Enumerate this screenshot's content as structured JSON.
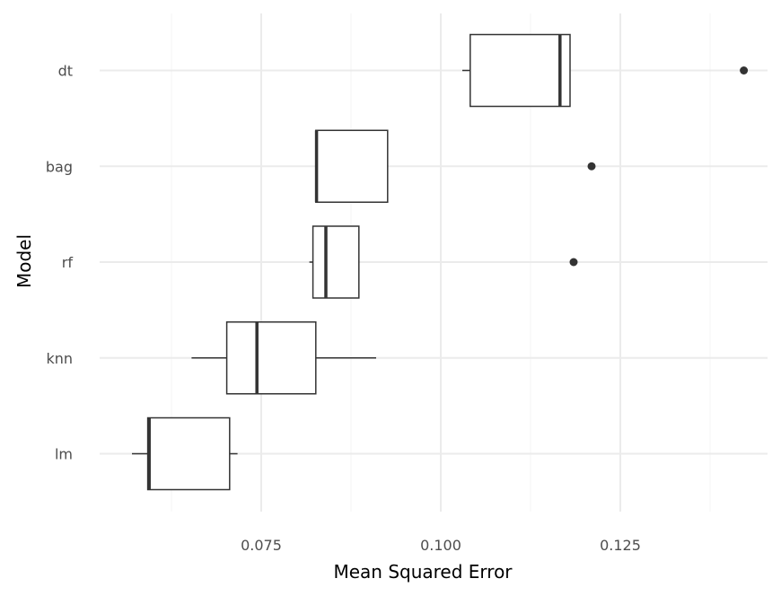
{
  "chart_data": {
    "type": "boxplot",
    "orientation": "horizontal",
    "xlabel": "Mean Squared Error",
    "ylabel": "Model",
    "xlim": [
      0.0525,
      0.1455
    ],
    "x_ticks": [
      0.075,
      0.1,
      0.125
    ],
    "x_tick_labels": [
      "0.075",
      "0.100",
      "0.125"
    ],
    "x_minor_ticks": [
      0.0625,
      0.0875,
      0.1125,
      0.1375
    ],
    "categories": [
      "dt",
      "bag",
      "rf",
      "knn",
      "lm"
    ],
    "boxes": [
      {
        "category": "dt",
        "whisker_low": 0.103,
        "q1": 0.1041,
        "median": 0.1166,
        "q3": 0.118,
        "whisker_high": 0.118,
        "outliers": [
          0.1422
        ]
      },
      {
        "category": "bag",
        "whisker_low": 0.0826,
        "q1": 0.0826,
        "median": 0.0827,
        "q3": 0.0926,
        "whisker_high": 0.0926,
        "outliers": [
          0.121
        ]
      },
      {
        "category": "rf",
        "whisker_low": 0.0817,
        "q1": 0.0822,
        "median": 0.084,
        "q3": 0.0886,
        "whisker_high": 0.0886,
        "outliers": [
          0.1185
        ]
      },
      {
        "category": "knn",
        "whisker_low": 0.0653,
        "q1": 0.0702,
        "median": 0.0744,
        "q3": 0.0826,
        "whisker_high": 0.091,
        "outliers": []
      },
      {
        "category": "lm",
        "whisker_low": 0.057,
        "q1": 0.0592,
        "median": 0.0594,
        "q3": 0.0706,
        "whisker_high": 0.0717,
        "outliers": []
      }
    ],
    "grid": true,
    "theme": "minimal",
    "colors": {
      "box_fill": "#ffffff",
      "box_line": "#333333",
      "grid_major": "#ebebeb",
      "grid_minor": "#f5f5f5"
    }
  }
}
